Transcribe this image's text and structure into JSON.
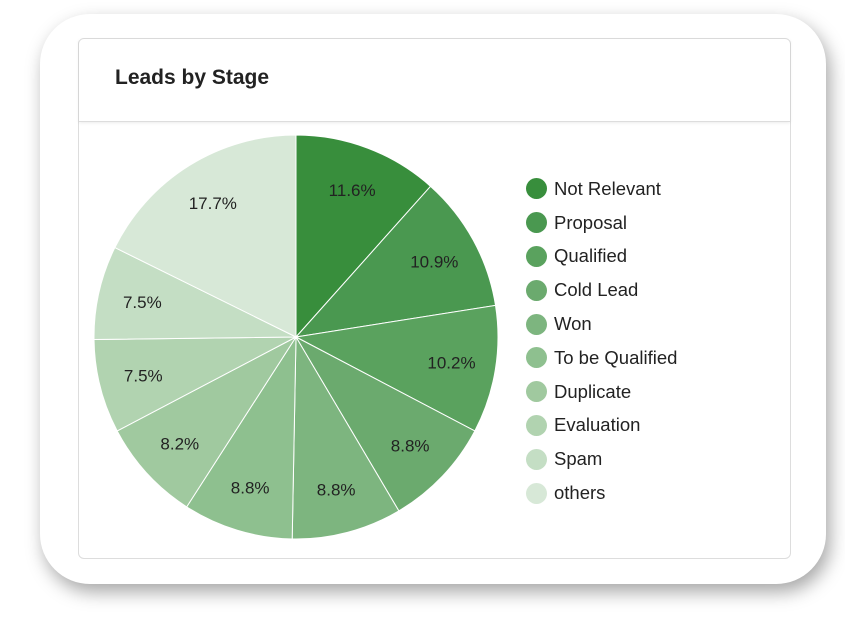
{
  "chart_data": {
    "type": "pie",
    "title": "Leads by Stage",
    "categories": [
      "Not Relevant",
      "Proposal",
      "Qualified",
      "Cold Lead",
      "Won",
      "To be Qualified",
      "Duplicate",
      "Evaluation",
      "Spam",
      "others"
    ],
    "values": [
      11.6,
      10.9,
      10.2,
      8.8,
      8.8,
      8.8,
      8.2,
      7.5,
      7.5,
      17.7
    ],
    "labels": [
      "11.6%",
      "10.9%",
      "10.2%",
      "8.8%",
      "8.8%",
      "8.8%",
      "8.2%",
      "7.5%",
      "7.5%",
      "17.7%"
    ],
    "colors": [
      "#388E3C",
      "#4A9850",
      "#5AA25E",
      "#6BAA6E",
      "#7DB57F",
      "#8EC08F",
      "#A0C99F",
      "#B1D3B0",
      "#C4DEC4",
      "#D7E8D7"
    ],
    "legend": "right"
  }
}
